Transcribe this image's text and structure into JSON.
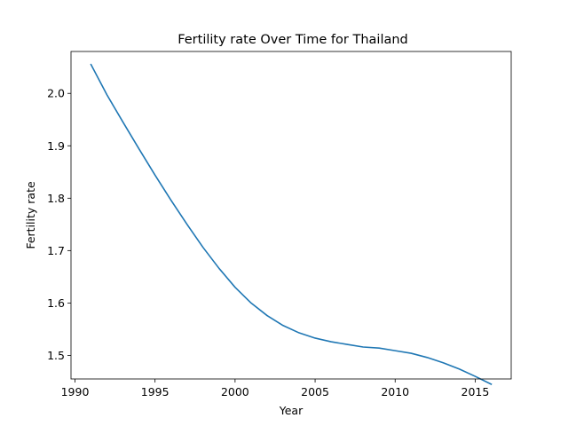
{
  "chart_data": {
    "type": "line",
    "title": "Fertility rate Over Time for Thailand",
    "xlabel": "Year",
    "ylabel": "Fertility rate",
    "xlim": [
      1989.75,
      2017.25
    ],
    "ylim": [
      1.455,
      2.08
    ],
    "x_ticks": [
      1990,
      1995,
      2000,
      2005,
      2010,
      2015
    ],
    "y_ticks": [
      1.5,
      1.6,
      1.7,
      1.8,
      1.9,
      2.0
    ],
    "grid": false,
    "color": "#1f77b4",
    "series": [
      {
        "x": [
          1991,
          1992,
          1993,
          1994,
          1995,
          1996,
          1997,
          1998,
          1999,
          2000,
          2001,
          2002,
          2003,
          2004,
          2005,
          2006,
          2007,
          2008,
          2009,
          2010,
          2011,
          2012,
          2013,
          2014,
          2015,
          2016
        ],
        "values": [
          2.055,
          1.997,
          1.945,
          1.894,
          1.844,
          1.796,
          1.75,
          1.706,
          1.666,
          1.63,
          1.6,
          1.576,
          1.557,
          1.543,
          1.533,
          1.526,
          1.521,
          1.516,
          1.514,
          1.509,
          1.504,
          1.496,
          1.486,
          1.474,
          1.46,
          1.445
        ]
      }
    ]
  }
}
